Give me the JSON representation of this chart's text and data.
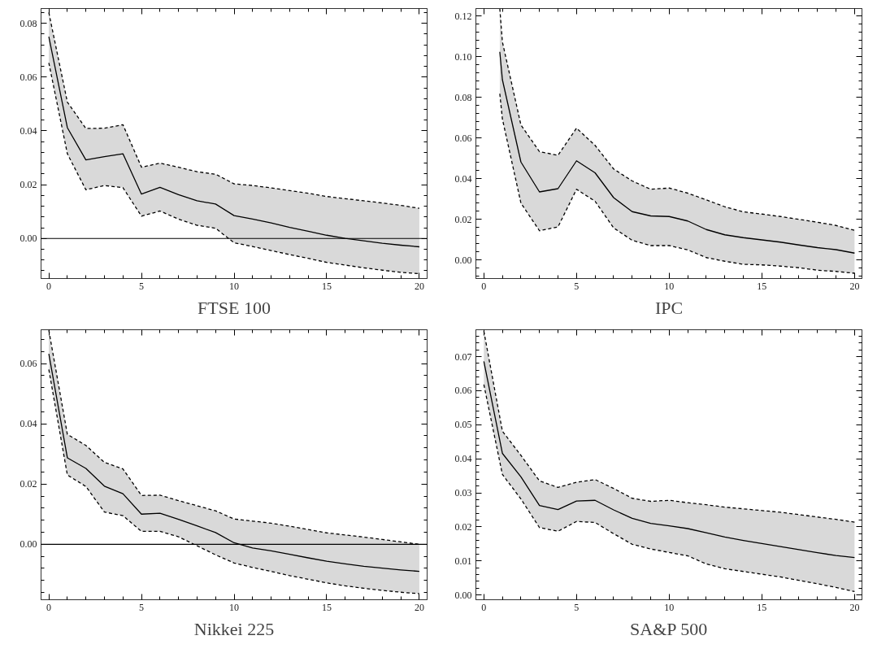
{
  "chart_data": [
    {
      "type": "line",
      "title": "FTSE 100",
      "xlim": [
        -0.42,
        20.42
      ],
      "ylim": [
        -0.0149,
        0.0855
      ],
      "xticks": [
        0,
        5,
        10,
        15,
        20
      ],
      "yticks": [
        {
          "value": 0,
          "label": "0.00"
        },
        {
          "value": 0.02,
          "label": "0.02"
        },
        {
          "value": 0.04,
          "label": "0.04"
        },
        {
          "value": 0.06,
          "label": "0.06"
        },
        {
          "value": 0.08,
          "label": "0.08"
        }
      ],
      "grid": false,
      "line_style": "solid",
      "ref_lines": [
        {
          "axis": "y",
          "value": 0,
          "color": "#000000"
        }
      ],
      "x": [
        0,
        1,
        2,
        3,
        4,
        5,
        6,
        7,
        8,
        9,
        10,
        11,
        12,
        13,
        14,
        15,
        16,
        17,
        18,
        19,
        20
      ],
      "series": [
        {
          "color": "#000000",
          "values": [
            0.075,
            0.0412,
            0.0292,
            0.0304,
            0.0315,
            0.0165,
            0.019,
            0.0163,
            0.014,
            0.0128,
            0.0085,
            0.0072,
            0.0058,
            0.0041,
            0.0027,
            0.0012,
            0.0,
            -0.0009,
            -0.0018,
            -0.0025,
            -0.0031
          ],
          "upper": [
            0.084,
            0.0507,
            0.0409,
            0.041,
            0.0423,
            0.0265,
            0.028,
            0.0265,
            0.0248,
            0.0239,
            0.0203,
            0.0197,
            0.0188,
            0.0178,
            0.0168,
            0.0156,
            0.0148,
            0.014,
            0.0132,
            0.0123,
            0.0112
          ],
          "lower": [
            0.0653,
            0.0315,
            0.0181,
            0.0197,
            0.0189,
            0.0083,
            0.0102,
            0.0072,
            0.0049,
            0.0038,
            -0.0016,
            -0.003,
            -0.0045,
            -0.006,
            -0.0074,
            -0.0089,
            -0.0099,
            -0.0109,
            -0.0118,
            -0.0126,
            -0.0131
          ]
        },
        {
          "color": "#000000",
          "line_style": "dashed",
          "values": [
            0.084,
            0.0507,
            0.0409,
            0.041,
            0.0423,
            0.0265,
            0.028,
            0.0265,
            0.0248,
            0.0239,
            0.0203,
            0.0197,
            0.0188,
            0.0178,
            0.0168,
            0.0156,
            0.0148,
            0.014,
            0.0132,
            0.0123,
            0.0112
          ]
        },
        {
          "color": "#000000",
          "line_style": "dashed",
          "values": [
            0.0653,
            0.0315,
            0.0181,
            0.0197,
            0.0189,
            0.0083,
            0.0102,
            0.0072,
            0.0049,
            0.0038,
            -0.0016,
            -0.003,
            -0.0045,
            -0.006,
            -0.0074,
            -0.0089,
            -0.0099,
            -0.0109,
            -0.0118,
            -0.0126,
            -0.0131
          ]
        }
      ]
    },
    {
      "type": "line",
      "title": "IPC",
      "xlim": [
        -0.43,
        20.4
      ],
      "ylim": [
        -0.0091,
        0.1237
      ],
      "xticks": [
        0,
        5,
        10,
        15,
        20
      ],
      "yticks": [
        {
          "value": 0,
          "label": "0.00"
        },
        {
          "value": 0.02,
          "label": "0.02"
        },
        {
          "value": 0.04,
          "label": "0.04"
        },
        {
          "value": 0.06,
          "label": "0.06"
        },
        {
          "value": 0.08,
          "label": "0.08"
        },
        {
          "value": 0.1,
          "label": "0.10"
        },
        {
          "value": 0.12,
          "label": "0.12"
        }
      ],
      "grid": false,
      "line_style": "solid",
      "x": [
        0.86,
        1,
        2,
        3,
        4,
        5,
        6,
        7,
        8,
        9,
        10,
        11,
        12,
        13,
        14,
        15,
        16,
        17,
        18,
        19,
        20
      ],
      "series": [
        {
          "color": "#000000",
          "values": [
            0.1024,
            0.0887,
            0.0482,
            0.0335,
            0.0351,
            0.0488,
            0.0429,
            0.0307,
            0.0238,
            0.0217,
            0.0214,
            0.0192,
            0.015,
            0.0124,
            0.011,
            0.0099,
            0.0088,
            0.0074,
            0.0061,
            0.0051,
            0.0034
          ],
          "upper": [
            0.1237,
            0.1073,
            0.0664,
            0.0533,
            0.0515,
            0.0649,
            0.0564,
            0.0448,
            0.0389,
            0.0348,
            0.0354,
            0.0329,
            0.0296,
            0.0262,
            0.0237,
            0.0226,
            0.0214,
            0.02,
            0.0186,
            0.017,
            0.0146
          ],
          "lower": [
            0.0818,
            0.0694,
            0.028,
            0.0144,
            0.0163,
            0.0348,
            0.0289,
            0.0158,
            0.0097,
            0.0071,
            0.0071,
            0.005,
            0.0012,
            -0.0006,
            -0.0021,
            -0.0024,
            -0.003,
            -0.0038,
            -0.005,
            -0.0056,
            -0.0065
          ]
        },
        {
          "color": "#000000",
          "line_style": "dashed",
          "values": [
            0.1237,
            0.1073,
            0.0664,
            0.0533,
            0.0515,
            0.0649,
            0.0564,
            0.0448,
            0.0389,
            0.0348,
            0.0354,
            0.0329,
            0.0296,
            0.0262,
            0.0237,
            0.0226,
            0.0214,
            0.02,
            0.0186,
            0.017,
            0.0146
          ]
        },
        {
          "color": "#000000",
          "line_style": "dashed",
          "values": [
            0.0818,
            0.0694,
            0.028,
            0.0144,
            0.0163,
            0.0348,
            0.0289,
            0.0158,
            0.0097,
            0.0071,
            0.0071,
            0.005,
            0.0012,
            -0.0006,
            -0.0021,
            -0.0024,
            -0.003,
            -0.0038,
            -0.005,
            -0.0056,
            -0.0065
          ]
        }
      ]
    },
    {
      "type": "line",
      "title": "Nikkei 225",
      "xlim": [
        -0.42,
        20.42
      ],
      "ylim": [
        -0.0184,
        0.0712
      ],
      "xticks": [
        0,
        5,
        10,
        15,
        20
      ],
      "yticks": [
        {
          "value": 0,
          "label": "0.00"
        },
        {
          "value": 0.02,
          "label": "0.02"
        },
        {
          "value": 0.04,
          "label": "0.04"
        },
        {
          "value": 0.06,
          "label": "0.06"
        }
      ],
      "grid": false,
      "line_style": "solid",
      "ref_lines": [
        {
          "axis": "y",
          "value": 0,
          "color": "#000000"
        }
      ],
      "x": [
        0,
        1,
        2,
        3,
        4,
        5,
        6,
        7,
        8,
        9,
        10,
        11,
        12,
        13,
        14,
        15,
        16,
        17,
        18,
        19,
        20
      ],
      "series": [
        {
          "color": "#000000",
          "values": [
            0.0632,
            0.0287,
            0.0252,
            0.0193,
            0.0168,
            0.01,
            0.0103,
            0.0083,
            0.0061,
            0.0039,
            0.0005,
            -0.0012,
            -0.0022,
            -0.0033,
            -0.0045,
            -0.0056,
            -0.0065,
            -0.0073,
            -0.0079,
            -0.0085,
            -0.009
          ],
          "upper": [
            0.071,
            0.0365,
            0.0328,
            0.0272,
            0.025,
            0.0162,
            0.0163,
            0.0145,
            0.0128,
            0.0111,
            0.0084,
            0.0077,
            0.007,
            0.006,
            0.0049,
            0.0038,
            0.0031,
            0.0024,
            0.0016,
            0.0008,
            0.0
          ],
          "lower": [
            0.058,
            0.023,
            0.0192,
            0.0107,
            0.0095,
            0.0043,
            0.0043,
            0.0025,
            -0.0005,
            -0.0035,
            -0.0062,
            -0.0077,
            -0.009,
            -0.0104,
            -0.0116,
            -0.0128,
            -0.0138,
            -0.0146,
            -0.0153,
            -0.0159,
            -0.0164
          ]
        },
        {
          "color": "#000000",
          "line_style": "dashed",
          "values": [
            0.071,
            0.0365,
            0.0328,
            0.0272,
            0.025,
            0.0162,
            0.0163,
            0.0145,
            0.0128,
            0.0111,
            0.0084,
            0.0077,
            0.007,
            0.006,
            0.0049,
            0.0038,
            0.0031,
            0.0024,
            0.0016,
            0.0008,
            0.0
          ]
        },
        {
          "color": "#000000",
          "line_style": "dashed",
          "values": [
            0.058,
            0.023,
            0.0192,
            0.0107,
            0.0095,
            0.0043,
            0.0043,
            0.0025,
            -0.0005,
            -0.0035,
            -0.0062,
            -0.0077,
            -0.009,
            -0.0104,
            -0.0116,
            -0.0128,
            -0.0138,
            -0.0146,
            -0.0153,
            -0.0159,
            -0.0164
          ]
        }
      ]
    },
    {
      "type": "line",
      "title": "SA&P 500",
      "xlim": [
        -0.43,
        20.4
      ],
      "ylim": [
        -0.0014,
        0.0779
      ],
      "xticks": [
        0,
        5,
        10,
        15,
        20
      ],
      "yticks": [
        {
          "value": 0,
          "label": "0.00"
        },
        {
          "value": 0.01,
          "label": "0.01"
        },
        {
          "value": 0.02,
          "label": "0.02"
        },
        {
          "value": 0.03,
          "label": "0.03"
        },
        {
          "value": 0.04,
          "label": "0.04"
        },
        {
          "value": 0.05,
          "label": "0.05"
        },
        {
          "value": 0.06,
          "label": "0.06"
        },
        {
          "value": 0.07,
          "label": "0.07"
        }
      ],
      "grid": false,
      "line_style": "solid",
      "x": [
        0,
        1,
        2,
        3,
        4,
        5,
        6,
        7,
        8,
        9,
        10,
        11,
        12,
        13,
        14,
        15,
        16,
        17,
        18,
        19,
        20
      ],
      "series": [
        {
          "color": "#000000",
          "values": [
            0.0686,
            0.0416,
            0.0347,
            0.0263,
            0.0251,
            0.0276,
            0.0278,
            0.025,
            0.0225,
            0.021,
            0.0203,
            0.0195,
            0.0183,
            0.017,
            0.016,
            0.0151,
            0.0142,
            0.0133,
            0.0124,
            0.0116,
            0.011
          ],
          "upper": [
            0.0775,
            0.0481,
            0.041,
            0.0335,
            0.0316,
            0.0331,
            0.0339,
            0.0313,
            0.0284,
            0.0275,
            0.0278,
            0.0271,
            0.0265,
            0.0258,
            0.0253,
            0.0248,
            0.0243,
            0.0236,
            0.0229,
            0.0222,
            0.0214
          ],
          "lower": [
            0.0618,
            0.0354,
            0.0282,
            0.0198,
            0.0187,
            0.0216,
            0.0213,
            0.018,
            0.0149,
            0.0135,
            0.0125,
            0.0115,
            0.0091,
            0.0077,
            0.0069,
            0.0061,
            0.0053,
            0.0043,
            0.0033,
            0.0022,
            0.001
          ]
        },
        {
          "color": "#000000",
          "line_style": "dashed",
          "values": [
            0.0775,
            0.0481,
            0.041,
            0.0335,
            0.0316,
            0.0331,
            0.0339,
            0.0313,
            0.0284,
            0.0275,
            0.0278,
            0.0271,
            0.0265,
            0.0258,
            0.0253,
            0.0248,
            0.0243,
            0.0236,
            0.0229,
            0.0222,
            0.0214
          ]
        },
        {
          "color": "#000000",
          "line_style": "dashed",
          "values": [
            0.0618,
            0.0354,
            0.0282,
            0.0198,
            0.0187,
            0.0216,
            0.0213,
            0.018,
            0.0149,
            0.0135,
            0.0125,
            0.0115,
            0.0091,
            0.0077,
            0.0069,
            0.0061,
            0.0053,
            0.0043,
            0.0033,
            0.0022,
            0.001
          ]
        }
      ]
    }
  ]
}
